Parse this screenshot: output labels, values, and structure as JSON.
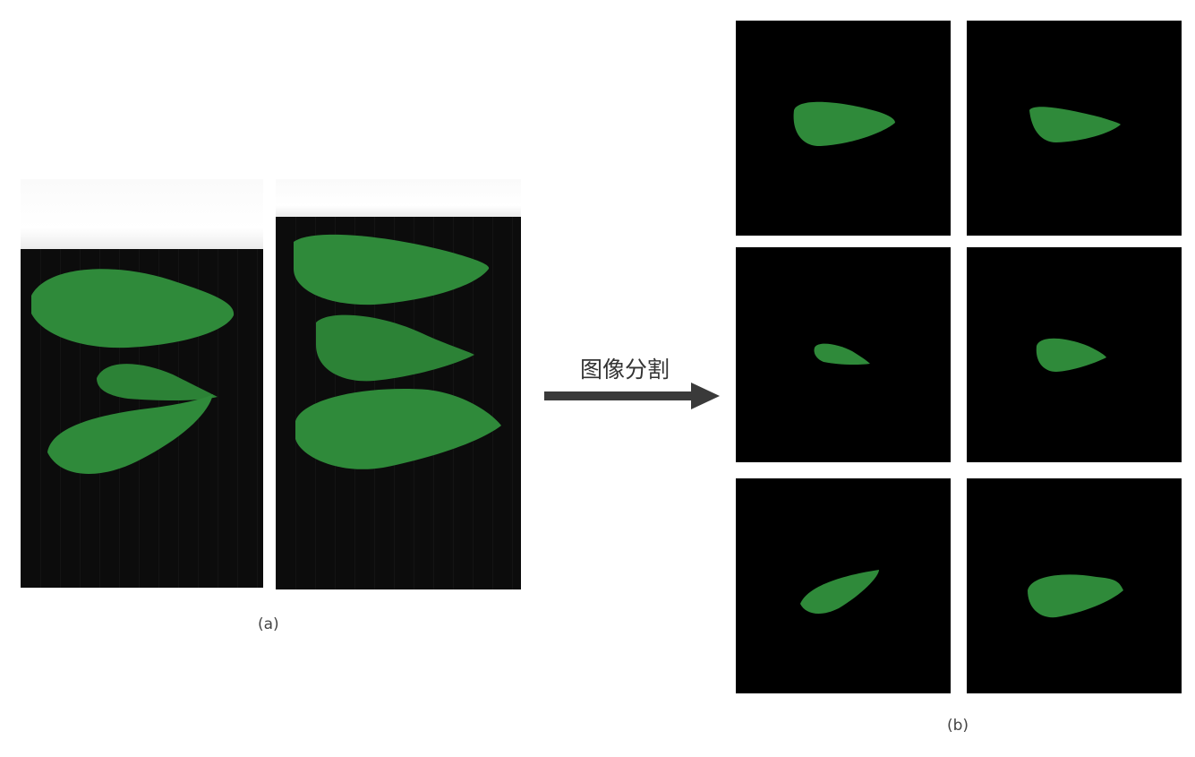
{
  "panel_a": {
    "caption": "(a)"
  },
  "arrow": {
    "label": "图像分割"
  },
  "panel_b": {
    "caption": "(b)",
    "tile_count": 6
  },
  "colors": {
    "leaf": "#2f8a3a",
    "leaf_dark": "#1f6b2a",
    "background": "#000000",
    "arrow": "#3a3a3a"
  }
}
